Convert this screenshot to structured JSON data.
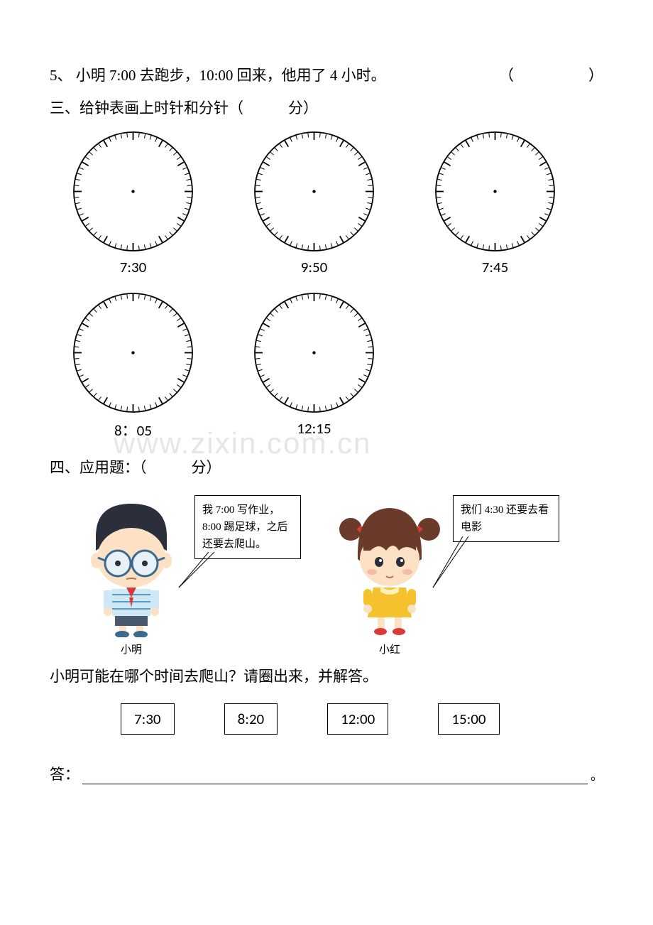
{
  "q5": {
    "num": "5、",
    "text": "小明 7:00 去跑步，10:00 回来，他用了 4 小时。",
    "paren": "（　　　　　）"
  },
  "section3": {
    "heading": "三、给钟表画上时针和分针（　　　分）",
    "clocks_row1": [
      {
        "label": "7:30"
      },
      {
        "label": "9:50"
      },
      {
        "label": "7:45"
      }
    ],
    "clocks_row2": [
      {
        "label": "8：05"
      },
      {
        "label": "12:15"
      }
    ],
    "clock_style": {
      "size": 175,
      "stroke": "#000000",
      "tick_major_len": 10,
      "tick_minor_len": 6,
      "center_dot_r": 2.2
    }
  },
  "section4": {
    "heading": "四、应用题：（　　　分）",
    "boy": {
      "name": "小明",
      "bubble": "我 7:00 写作业，8:00 踢足球，之后还要去爬山。"
    },
    "girl": {
      "name": "小红",
      "bubble": "我们 4:30 还要去看电影"
    },
    "question": "小明可能在哪个时间去爬山？请圈出来，并解答。",
    "options": [
      "7:30",
      "8:20",
      "12:00",
      "15:00"
    ],
    "answer_label": "答：",
    "period": "。"
  },
  "watermark": "www.zixin.com.cn"
}
